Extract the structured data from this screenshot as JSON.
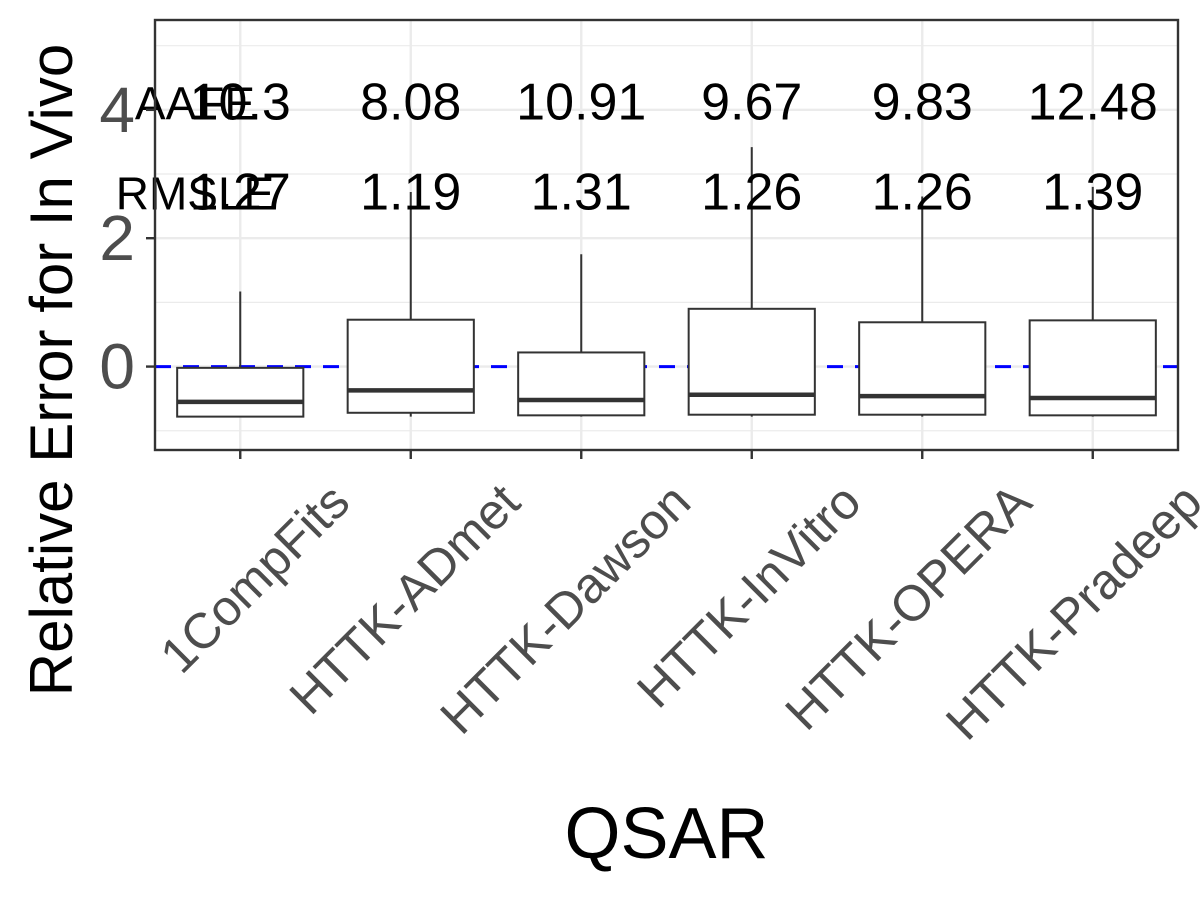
{
  "chart_data": {
    "type": "box",
    "xlabel": "QSAR",
    "ylabel": "Relative Error for In Vivo",
    "ylim": [
      -1.3,
      5.4
    ],
    "y_ticks": [
      0,
      2,
      4
    ],
    "grid": true,
    "reference_line": {
      "y": 0,
      "style": "dashed",
      "color": "#0000ff"
    },
    "categories": [
      "1CompFits",
      "HTTK-ADmet",
      "HTTK-Dawson",
      "HTTK-InVitro",
      "HTTK-OPERA",
      "HTTK-Pradeep"
    ],
    "boxes": [
      {
        "category": "1CompFits",
        "whisker_low": -0.78,
        "q1": -0.78,
        "median": -0.55,
        "q3": -0.02,
        "whisker_high": 1.17
      },
      {
        "category": "HTTK-ADmet",
        "whisker_low": -0.78,
        "q1": -0.72,
        "median": -0.37,
        "q3": 0.73,
        "whisker_high": 2.72
      },
      {
        "category": "HTTK-Dawson",
        "whisker_low": -0.78,
        "q1": -0.76,
        "median": -0.52,
        "q3": 0.22,
        "whisker_high": 1.75
      },
      {
        "category": "HTTK-InVitro",
        "whisker_low": -0.78,
        "q1": -0.75,
        "median": -0.44,
        "q3": 0.9,
        "whisker_high": 3.42
      },
      {
        "category": "HTTK-OPERA",
        "whisker_low": -0.78,
        "q1": -0.75,
        "median": -0.46,
        "q3": 0.69,
        "whisker_high": 2.65
      },
      {
        "category": "HTTK-Pradeep",
        "whisker_low": -0.78,
        "q1": -0.76,
        "median": -0.49,
        "q3": 0.72,
        "whisker_high": 2.8
      }
    ],
    "annotations": {
      "row_labels": [
        "AAFE",
        "RMSLE"
      ],
      "row_y": [
        4.1,
        2.7
      ],
      "AAFE": [
        "10.3",
        "8.08",
        "10.91",
        "9.67",
        "9.83",
        "12.48"
      ],
      "RMSLE": [
        "1.27",
        "1.19",
        "1.31",
        "1.26",
        "1.26",
        "1.39"
      ]
    },
    "tick_labels_x": [
      "1CompFits",
      "HTTK-ADmet",
      "HTTK-Dawson",
      "HTTK-InVitro",
      "HTTK-OPERA",
      "HTTK-Pradeep"
    ],
    "tick_labels_y": [
      "0",
      "2",
      "4"
    ],
    "colors": {
      "panel_border": "#333333",
      "grid_major": "#ebebeb",
      "box_line": "#333333",
      "box_fill": "#ffffff",
      "ref_line": "#0000ff",
      "tick_text": "#4d4d4d",
      "title_text": "#000000"
    }
  }
}
